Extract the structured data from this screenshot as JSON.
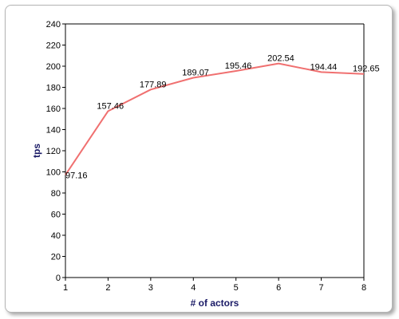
{
  "chart_data": {
    "type": "line",
    "title": "",
    "xlabel": "# of actors",
    "ylabel": "tps",
    "x": [
      1,
      2,
      3,
      4,
      5,
      6,
      7,
      8
    ],
    "xticks": [
      "1",
      "2",
      "3",
      "4",
      "5",
      "6",
      "7",
      "8"
    ],
    "xlim": [
      1,
      8
    ],
    "ylim": [
      0,
      240
    ],
    "yticks": [
      0,
      20,
      40,
      60,
      80,
      100,
      120,
      140,
      160,
      180,
      200,
      220,
      240
    ],
    "grid": false,
    "legend": "none",
    "series": [
      {
        "color": "#f07070",
        "values": [
          97.16,
          157.46,
          177.89,
          189.07,
          195.46,
          202.54,
          194.44,
          192.65
        ],
        "data_labels": [
          "97.16",
          "157.46",
          "177.89",
          "189.07",
          "195.46",
          "202.54",
          "194.44",
          "192.65"
        ]
      }
    ]
  }
}
